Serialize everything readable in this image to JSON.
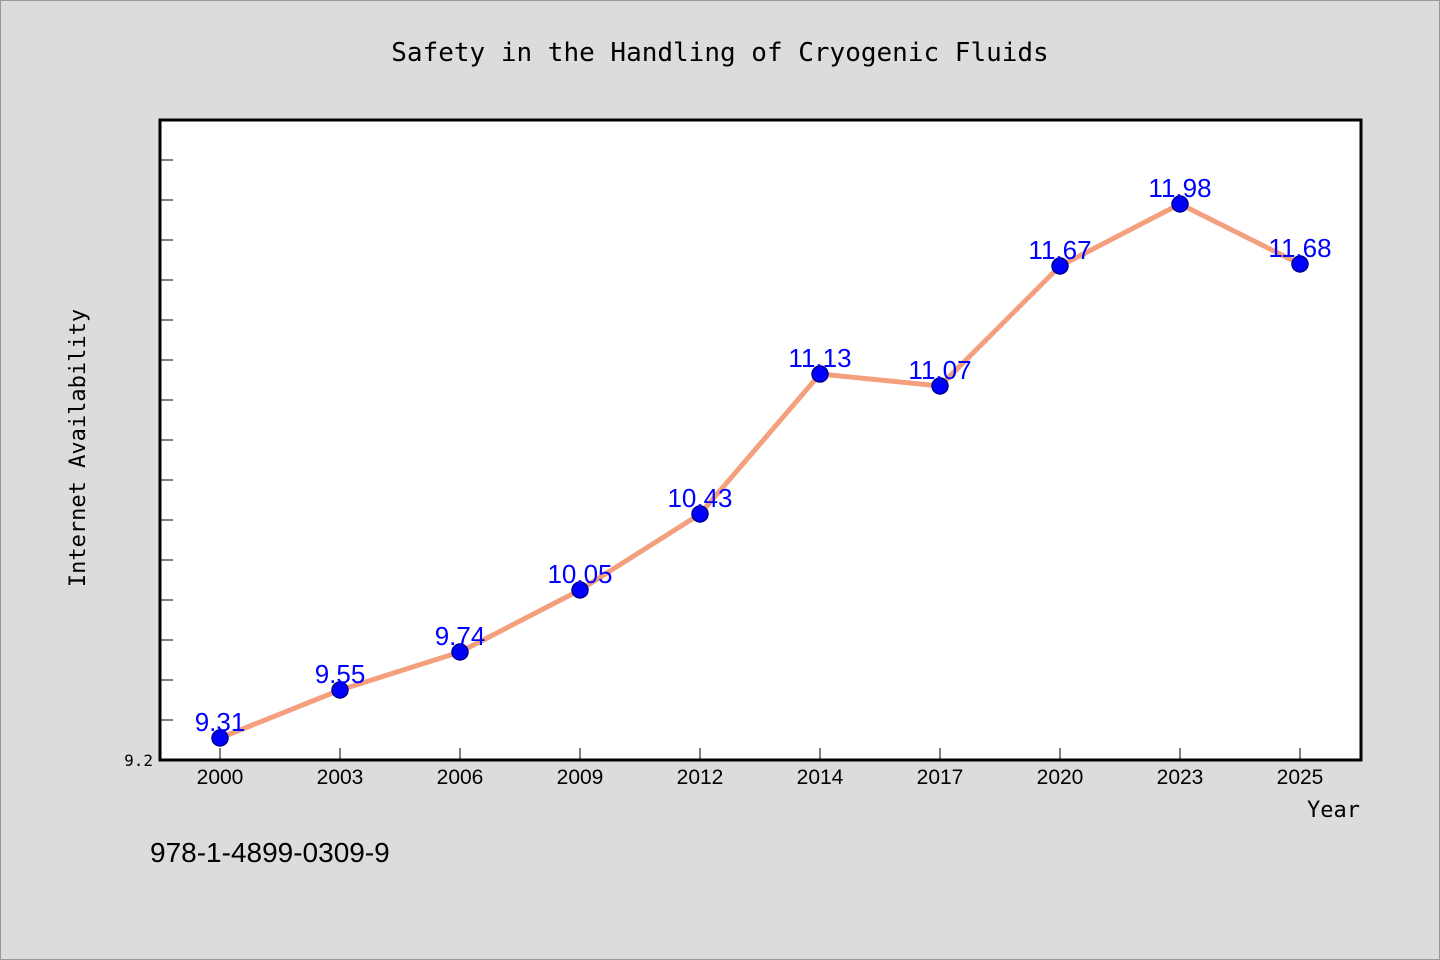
{
  "chart_data": {
    "type": "line",
    "title": "Safety in the Handling of Cryogenic Fluids",
    "xlabel": "Year",
    "ylabel": "Internet Availability",
    "categories": [
      "2000",
      "2003",
      "2006",
      "2009",
      "2012",
      "2014",
      "2017",
      "2020",
      "2023",
      "2025"
    ],
    "series": [
      {
        "values": [
          9.31,
          9.55,
          9.74,
          10.05,
          10.43,
          11.13,
          11.07,
          11.67,
          11.98,
          11.68
        ]
      }
    ],
    "ylim": [
      9.2,
      12.4
    ],
    "ytick_labels": [
      "9.2"
    ],
    "grid": false,
    "legend": "none",
    "colors": {
      "line": "#f4a07e",
      "marker": "#0000ff",
      "marker_edge": "#00008b",
      "data_label": "#0000ff",
      "background": "#dcdcdc",
      "plot_background": "#ffffff"
    }
  },
  "footnote": "978-1-4899-0309-9"
}
